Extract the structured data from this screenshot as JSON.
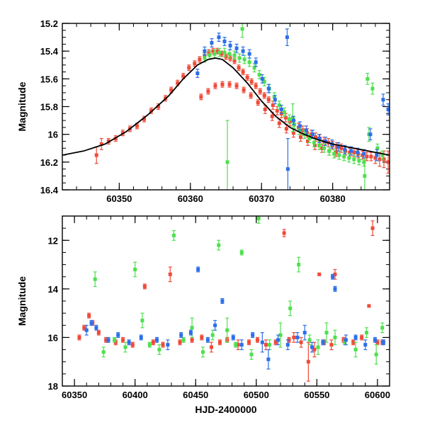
{
  "chart_data": [
    {
      "type": "scatter",
      "panel": "top",
      "xlabel": "",
      "ylabel": "Magnitude",
      "xlim": [
        60342,
        60388
      ],
      "ylim": [
        16.4,
        15.2
      ],
      "y_inverted": true,
      "xticks": [
        60350,
        60360,
        60370,
        60380
      ],
      "yticks": [
        15.2,
        15.4,
        15.6,
        15.8,
        16,
        16.2,
        16.4
      ],
      "colors": {
        "red": "#f04a38",
        "green": "#4ee04e",
        "blue": "#2c6fe8",
        "model": "#000000"
      },
      "model_curve": {
        "name": "",
        "x": [
          60342,
          60345,
          60348,
          60351,
          60354,
          60357,
          60359,
          60361,
          60362.5,
          60363.5,
          60364.5,
          60366,
          60368,
          60370,
          60372,
          60374,
          60376,
          60378,
          60380,
          60383,
          60386,
          60388
        ],
        "y": [
          16.15,
          16.12,
          16.07,
          15.98,
          15.86,
          15.72,
          15.6,
          15.5,
          15.46,
          15.45,
          15.46,
          15.52,
          15.63,
          15.76,
          15.87,
          15.95,
          16.0,
          16.04,
          16.07,
          16.1,
          16.13,
          16.15
        ]
      },
      "series": [
        {
          "name": "",
          "color": "red",
          "x": [
            60346.8,
            60347.5,
            60348.5,
            60349.5,
            60350.5,
            60351.5,
            60352.5,
            60353.5,
            60354.5,
            60355.5,
            60356.5,
            60357.3,
            60358.2,
            60359.0,
            60359.8,
            60360.6,
            60361.3,
            60362.0,
            60362.6,
            60363.2,
            60363.8,
            60364.4,
            60365.0,
            60365.6,
            60366.2,
            60366.8,
            60367.4,
            60368.0,
            60368.6,
            60369.2,
            60369.8,
            60370.4,
            60371.0,
            60371.6,
            60372.2,
            60372.8,
            60373.4,
            60374.0,
            60374.6,
            60375.2,
            60375.8,
            60376.4,
            60377.0,
            60377.6,
            60378.2,
            60378.8,
            60379.4,
            60380.0,
            60380.6,
            60381.2,
            60381.8,
            60382.4,
            60383.0,
            60383.6,
            60384.2,
            60384.8,
            60385.4,
            60386.0,
            60386.6,
            60387.2,
            60387.8,
            60361.5,
            60362.5,
            60363.5,
            60364.5,
            60365.5,
            60366.5,
            60367.5,
            60368.5,
            60369.5,
            60370.5,
            60371.5,
            60372.5,
            60373.5,
            60374.5,
            60375.5,
            60376.5,
            60377.5,
            60378.5,
            60379.5,
            60380.5
          ],
          "y": [
            16.15,
            16.07,
            16.05,
            16.03,
            15.99,
            15.96,
            15.94,
            15.89,
            15.83,
            15.8,
            15.74,
            15.68,
            15.63,
            15.58,
            15.52,
            15.49,
            15.46,
            15.43,
            15.41,
            15.4,
            15.4,
            15.42,
            15.44,
            15.45,
            15.47,
            15.52,
            15.55,
            15.59,
            15.62,
            15.65,
            15.69,
            15.72,
            15.75,
            15.79,
            15.83,
            15.85,
            15.88,
            15.91,
            15.93,
            15.95,
            15.97,
            15.99,
            16.0,
            16.02,
            16.03,
            16.05,
            16.06,
            16.08,
            16.09,
            16.1,
            16.12,
            16.13,
            16.13,
            16.14,
            16.15,
            16.16,
            16.16,
            16.17,
            16.18,
            16.18,
            16.2,
            15.73,
            15.69,
            15.65,
            15.64,
            15.64,
            15.65,
            15.68,
            15.72,
            15.77,
            15.82,
            15.87,
            15.92,
            15.96,
            15.99,
            16.02,
            16.05,
            16.08,
            16.1,
            16.12,
            16.13
          ],
          "err": [
            0.06,
            0.04,
            0.02,
            0.02,
            0.02,
            0.02,
            0.02,
            0.02,
            0.02,
            0.02,
            0.02,
            0.02,
            0.02,
            0.02,
            0.02,
            0.02,
            0.02,
            0.02,
            0.02,
            0.02,
            0.02,
            0.02,
            0.02,
            0.02,
            0.02,
            0.02,
            0.02,
            0.02,
            0.02,
            0.02,
            0.02,
            0.02,
            0.02,
            0.03,
            0.03,
            0.03,
            0.03,
            0.03,
            0.03,
            0.03,
            0.03,
            0.03,
            0.03,
            0.03,
            0.03,
            0.03,
            0.03,
            0.03,
            0.03,
            0.03,
            0.03,
            0.03,
            0.03,
            0.03,
            0.03,
            0.03,
            0.03,
            0.04,
            0.05,
            0.06,
            0.08,
            0.02,
            0.02,
            0.02,
            0.02,
            0.02,
            0.02,
            0.02,
            0.02,
            0.02,
            0.03,
            0.03,
            0.03,
            0.03,
            0.03,
            0.03,
            0.03,
            0.03,
            0.03,
            0.03,
            0.03
          ]
        },
        {
          "name": "",
          "color": "green",
          "x": [
            60362.0,
            60362.7,
            60363.4,
            60364.1,
            60364.8,
            60365.5,
            60366.2,
            60366.9,
            60367.3,
            60367.6,
            60368.3,
            60369.0,
            60369.7,
            60370.4,
            60371.1,
            60371.8,
            60372.5,
            60373.2,
            60373.9,
            60374.6,
            60375.3,
            60376.0,
            60376.7,
            60377.4,
            60378.1,
            60378.8,
            60379.5,
            60380.2,
            60380.9,
            60381.6,
            60382.3,
            60383.0,
            60383.7,
            60384.4,
            60384.9,
            60385.1,
            60385.6,
            60386.3,
            60387.0,
            60365.2,
            60374.4,
            60384.5
          ],
          "y": [
            15.45,
            15.43,
            15.42,
            15.41,
            15.41,
            15.42,
            15.43,
            15.45,
            15.24,
            15.46,
            15.48,
            15.52,
            15.57,
            15.62,
            15.67,
            15.73,
            15.79,
            15.84,
            15.89,
            15.93,
            15.97,
            16.0,
            16.03,
            16.06,
            16.08,
            16.1,
            16.12,
            16.14,
            16.15,
            16.16,
            16.17,
            16.18,
            16.19,
            16.2,
            15.6,
            16.0,
            15.67,
            16.1,
            16.15,
            16.2,
            15.88,
            16.3
          ],
          "err": [
            0.03,
            0.03,
            0.03,
            0.03,
            0.03,
            0.03,
            0.03,
            0.03,
            0.06,
            0.03,
            0.03,
            0.03,
            0.03,
            0.03,
            0.03,
            0.03,
            0.03,
            0.03,
            0.03,
            0.03,
            0.03,
            0.03,
            0.03,
            0.03,
            0.03,
            0.03,
            0.03,
            0.03,
            0.03,
            0.03,
            0.03,
            0.03,
            0.03,
            0.03,
            0.04,
            0.05,
            0.04,
            0.03,
            0.03,
            0.3,
            0.1,
            0.12
          ]
        },
        {
          "name": "",
          "color": "blue",
          "x": [
            60361.0,
            60362.0,
            60363.0,
            60364.0,
            60364.8,
            60365.6,
            60366.5,
            60367.4,
            60368.3,
            60369.2,
            60370.1,
            60371.0,
            60371.9,
            60372.8,
            60373.6,
            60373.7,
            60374.5,
            60375.4,
            60376.3,
            60377.2,
            60378.1,
            60379.0,
            60379.9,
            60380.8,
            60381.7,
            60382.6,
            60383.5,
            60384.4,
            60385.3,
            60386.2,
            60387.1,
            60387.8
          ],
          "y": [
            15.56,
            15.4,
            15.34,
            15.3,
            15.33,
            15.36,
            15.38,
            15.4,
            15.42,
            15.48,
            15.6,
            15.67,
            15.75,
            15.82,
            15.3,
            16.25,
            15.9,
            15.94,
            15.97,
            16.0,
            16.03,
            16.05,
            16.07,
            16.09,
            16.11,
            16.12,
            16.13,
            16.14,
            16.0,
            16.15,
            15.75,
            15.82
          ],
          "err": [
            0.03,
            0.03,
            0.03,
            0.03,
            0.03,
            0.03,
            0.03,
            0.03,
            0.03,
            0.03,
            0.03,
            0.03,
            0.03,
            0.03,
            0.06,
            0.22,
            0.03,
            0.03,
            0.03,
            0.03,
            0.03,
            0.03,
            0.03,
            0.03,
            0.03,
            0.03,
            0.03,
            0.03,
            0.04,
            0.04,
            0.04,
            0.04
          ]
        }
      ]
    },
    {
      "type": "scatter",
      "panel": "bottom",
      "xlabel": "HJD-2400000",
      "ylabel": "Magnitude",
      "xlim": [
        60340,
        60610
      ],
      "ylim": [
        18,
        11
      ],
      "y_inverted": true,
      "xticks": [
        60350,
        60400,
        60450,
        60500,
        60550,
        60600
      ],
      "yticks": [
        12,
        14,
        16,
        18
      ],
      "series": [
        {
          "name": "",
          "color": "red",
          "x": [
            60354,
            60358,
            60362,
            60365,
            60370,
            60376,
            60384,
            60390,
            60398,
            60408,
            60415,
            60423,
            60429,
            60437,
            60447,
            60455,
            60463,
            60470,
            60476,
            60485,
            60494,
            60501,
            60508,
            60516,
            60523,
            60527,
            60531,
            60537,
            60543,
            60548,
            60552,
            60556,
            60562,
            60565,
            60572,
            60580,
            60587,
            60593,
            60596,
            60600,
            60604
          ],
          "y": [
            16.0,
            15.6,
            15.1,
            15.4,
            15.8,
            16.1,
            16.2,
            16.1,
            16.3,
            13.9,
            16.2,
            16.3,
            13.4,
            16.2,
            16.1,
            16.0,
            16.4,
            16.2,
            16.1,
            16.3,
            16.2,
            16.1,
            16.3,
            16.2,
            11.7,
            16.1,
            16.0,
            16.2,
            17.0,
            16.5,
            13.4,
            16.2,
            16.3,
            13.4,
            16.1,
            16.2,
            16.0,
            14.7,
            11.5,
            16.2,
            16.2
          ],
          "err": [
            0.1,
            0.1,
            0.1,
            0.1,
            0.1,
            0.1,
            0.1,
            0.1,
            0.1,
            0.1,
            0.1,
            0.1,
            0.3,
            0.1,
            0.1,
            0.1,
            0.2,
            0.1,
            0.1,
            0.2,
            0.1,
            0.1,
            0.2,
            0.1,
            0.15,
            0.1,
            0.2,
            0.2,
            0.8,
            0.3,
            0.05,
            0.1,
            0.2,
            0.2,
            0.1,
            0.1,
            0.1,
            0.05,
            0.3,
            0.1,
            0.1
          ]
        },
        {
          "name": "",
          "color": "green",
          "x": [
            60367,
            60374,
            60383,
            60392,
            60400,
            60406,
            60412,
            60420,
            60432,
            60440,
            60447,
            60456,
            60464,
            60469,
            60476,
            60483,
            60488,
            60496,
            60502,
            60511,
            60520,
            60528,
            60535,
            60544,
            60551,
            60558,
            60565,
            60573,
            60582,
            60591,
            60599,
            60604
          ],
          "y": [
            13.6,
            16.6,
            16.1,
            16.4,
            13.2,
            15.3,
            16.3,
            16.5,
            11.8,
            16.1,
            15.6,
            16.6,
            15.9,
            12.2,
            15.7,
            16.3,
            12.5,
            16.7,
            11.1,
            16.3,
            15.9,
            14.8,
            13.0,
            16.1,
            16.4,
            15.8,
            16.0,
            16.2,
            16.5,
            15.8,
            16.7,
            15.6
          ],
          "err": [
            0.3,
            0.2,
            0.1,
            0.2,
            0.3,
            0.3,
            0.1,
            0.2,
            0.2,
            0.1,
            0.4,
            0.2,
            0.2,
            0.2,
            0.5,
            0.1,
            0.1,
            0.2,
            0.2,
            0.2,
            0.5,
            0.3,
            0.3,
            0.2,
            0.3,
            0.4,
            0.3,
            0.1,
            0.3,
            0.2,
            0.4,
            0.2
          ]
        },
        {
          "name": "",
          "color": "blue",
          "x": [
            60360,
            60364,
            60368,
            60378,
            60386,
            60395,
            60405,
            60418,
            60427,
            60438,
            60446,
            60452,
            60460,
            60466,
            60472,
            60481,
            60488,
            60497,
            60505,
            60510,
            60518,
            60526,
            60534,
            60540,
            60546,
            60555,
            60563,
            60565,
            60574,
            60582,
            60590,
            60598,
            60605
          ],
          "y": [
            15.7,
            15.4,
            15.6,
            16.1,
            15.9,
            16.2,
            16.0,
            16.1,
            16.3,
            15.9,
            15.8,
            13.2,
            16.1,
            15.5,
            14.5,
            16.0,
            16.3,
            15.9,
            16.2,
            16.9,
            16.1,
            16.3,
            16.0,
            15.8,
            16.4,
            16.2,
            13.5,
            14.0,
            16.1,
            16.0,
            16.3,
            16.1,
            16.2
          ],
          "err": [
            0.2,
            0.1,
            0.1,
            0.1,
            0.1,
            0.1,
            0.1,
            0.1,
            0.2,
            0.1,
            0.1,
            0.1,
            0.1,
            0.2,
            0.1,
            0.1,
            0.2,
            0.1,
            0.4,
            0.4,
            0.2,
            0.2,
            0.2,
            0.3,
            0.2,
            0.1,
            0.1,
            0.1,
            0.2,
            0.1,
            0.2,
            0.1,
            0.1
          ]
        }
      ]
    }
  ]
}
